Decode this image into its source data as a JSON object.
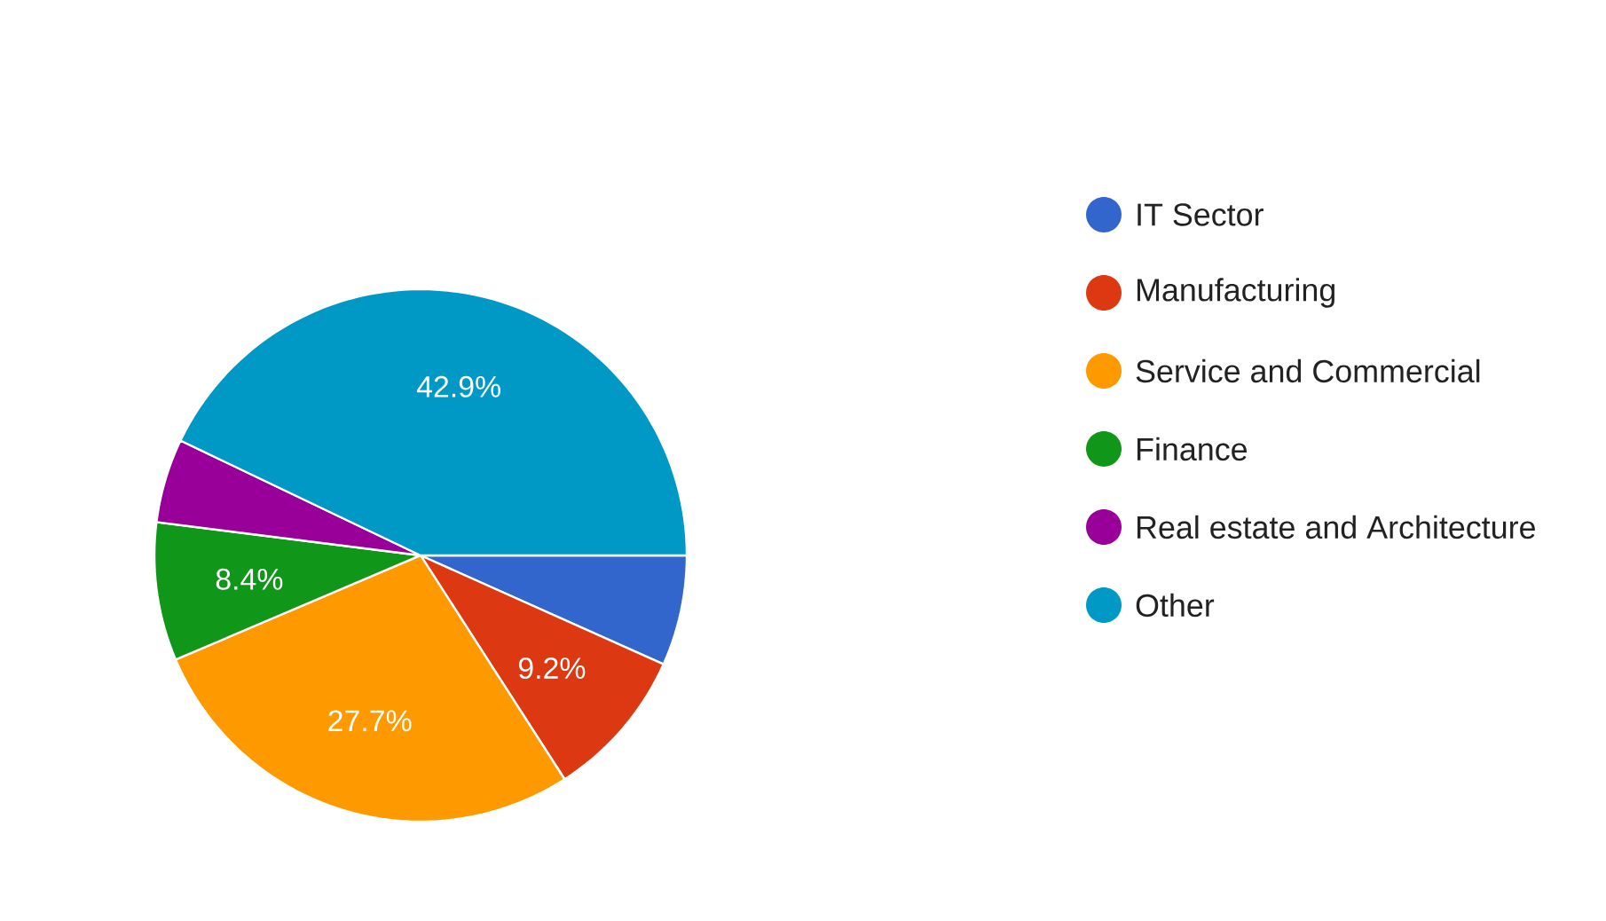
{
  "chart_data": {
    "type": "pie",
    "categories": [
      "IT Sector",
      "Manufacturing",
      "Service and Commercial",
      "Finance",
      "Real estate and Architecture",
      "Other"
    ],
    "values": [
      6.7,
      9.2,
      27.7,
      8.4,
      5.1,
      42.9
    ],
    "colors": [
      "#3366cc",
      "#dc3912",
      "#ff9900",
      "#109618",
      "#990099",
      "#0099c6"
    ],
    "value_labels": [
      null,
      "9.2%",
      "27.7%",
      "8.4%",
      null,
      "42.9%"
    ],
    "legend": "right"
  }
}
